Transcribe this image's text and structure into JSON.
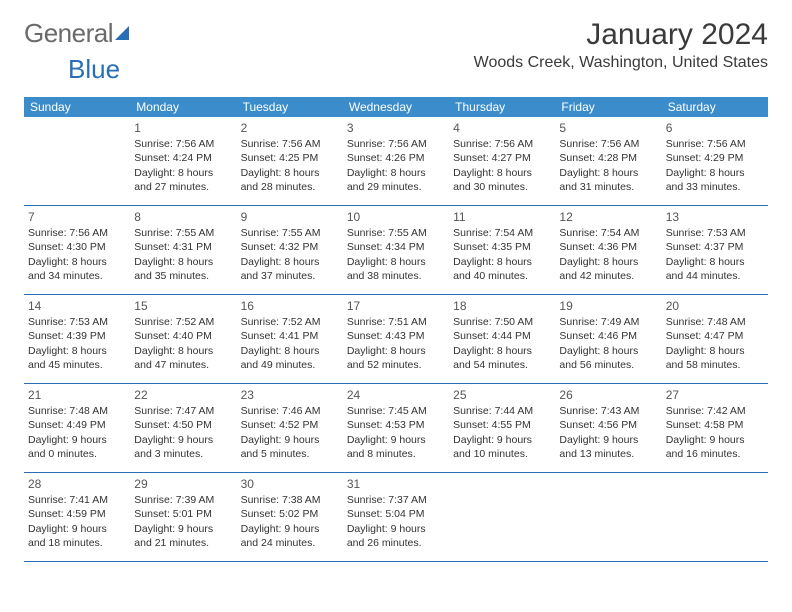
{
  "logo": {
    "part1": "General",
    "part2": "Blue"
  },
  "header": {
    "month_title": "January 2024",
    "location": "Woods Creek, Washington, United States"
  },
  "day_names": [
    "Sunday",
    "Monday",
    "Tuesday",
    "Wednesday",
    "Thursday",
    "Friday",
    "Saturday"
  ],
  "colors": {
    "header_bg": "#3b8ccb",
    "header_fg": "#ffffff",
    "divider": "#2a6fb5",
    "text": "#333333",
    "daynum": "#555555"
  },
  "start_offset": 1,
  "days": [
    {
      "n": "1",
      "sunrise": "7:56 AM",
      "sunset": "4:24 PM",
      "dl1": "8 hours",
      "dl2": "and 27 minutes."
    },
    {
      "n": "2",
      "sunrise": "7:56 AM",
      "sunset": "4:25 PM",
      "dl1": "8 hours",
      "dl2": "and 28 minutes."
    },
    {
      "n": "3",
      "sunrise": "7:56 AM",
      "sunset": "4:26 PM",
      "dl1": "8 hours",
      "dl2": "and 29 minutes."
    },
    {
      "n": "4",
      "sunrise": "7:56 AM",
      "sunset": "4:27 PM",
      "dl1": "8 hours",
      "dl2": "and 30 minutes."
    },
    {
      "n": "5",
      "sunrise": "7:56 AM",
      "sunset": "4:28 PM",
      "dl1": "8 hours",
      "dl2": "and 31 minutes."
    },
    {
      "n": "6",
      "sunrise": "7:56 AM",
      "sunset": "4:29 PM",
      "dl1": "8 hours",
      "dl2": "and 33 minutes."
    },
    {
      "n": "7",
      "sunrise": "7:56 AM",
      "sunset": "4:30 PM",
      "dl1": "8 hours",
      "dl2": "and 34 minutes."
    },
    {
      "n": "8",
      "sunrise": "7:55 AM",
      "sunset": "4:31 PM",
      "dl1": "8 hours",
      "dl2": "and 35 minutes."
    },
    {
      "n": "9",
      "sunrise": "7:55 AM",
      "sunset": "4:32 PM",
      "dl1": "8 hours",
      "dl2": "and 37 minutes."
    },
    {
      "n": "10",
      "sunrise": "7:55 AM",
      "sunset": "4:34 PM",
      "dl1": "8 hours",
      "dl2": "and 38 minutes."
    },
    {
      "n": "11",
      "sunrise": "7:54 AM",
      "sunset": "4:35 PM",
      "dl1": "8 hours",
      "dl2": "and 40 minutes."
    },
    {
      "n": "12",
      "sunrise": "7:54 AM",
      "sunset": "4:36 PM",
      "dl1": "8 hours",
      "dl2": "and 42 minutes."
    },
    {
      "n": "13",
      "sunrise": "7:53 AM",
      "sunset": "4:37 PM",
      "dl1": "8 hours",
      "dl2": "and 44 minutes."
    },
    {
      "n": "14",
      "sunrise": "7:53 AM",
      "sunset": "4:39 PM",
      "dl1": "8 hours",
      "dl2": "and 45 minutes."
    },
    {
      "n": "15",
      "sunrise": "7:52 AM",
      "sunset": "4:40 PM",
      "dl1": "8 hours",
      "dl2": "and 47 minutes."
    },
    {
      "n": "16",
      "sunrise": "7:52 AM",
      "sunset": "4:41 PM",
      "dl1": "8 hours",
      "dl2": "and 49 minutes."
    },
    {
      "n": "17",
      "sunrise": "7:51 AM",
      "sunset": "4:43 PM",
      "dl1": "8 hours",
      "dl2": "and 52 minutes."
    },
    {
      "n": "18",
      "sunrise": "7:50 AM",
      "sunset": "4:44 PM",
      "dl1": "8 hours",
      "dl2": "and 54 minutes."
    },
    {
      "n": "19",
      "sunrise": "7:49 AM",
      "sunset": "4:46 PM",
      "dl1": "8 hours",
      "dl2": "and 56 minutes."
    },
    {
      "n": "20",
      "sunrise": "7:48 AM",
      "sunset": "4:47 PM",
      "dl1": "8 hours",
      "dl2": "and 58 minutes."
    },
    {
      "n": "21",
      "sunrise": "7:48 AM",
      "sunset": "4:49 PM",
      "dl1": "9 hours",
      "dl2": "and 0 minutes."
    },
    {
      "n": "22",
      "sunrise": "7:47 AM",
      "sunset": "4:50 PM",
      "dl1": "9 hours",
      "dl2": "and 3 minutes."
    },
    {
      "n": "23",
      "sunrise": "7:46 AM",
      "sunset": "4:52 PM",
      "dl1": "9 hours",
      "dl2": "and 5 minutes."
    },
    {
      "n": "24",
      "sunrise": "7:45 AM",
      "sunset": "4:53 PM",
      "dl1": "9 hours",
      "dl2": "and 8 minutes."
    },
    {
      "n": "25",
      "sunrise": "7:44 AM",
      "sunset": "4:55 PM",
      "dl1": "9 hours",
      "dl2": "and 10 minutes."
    },
    {
      "n": "26",
      "sunrise": "7:43 AM",
      "sunset": "4:56 PM",
      "dl1": "9 hours",
      "dl2": "and 13 minutes."
    },
    {
      "n": "27",
      "sunrise": "7:42 AM",
      "sunset": "4:58 PM",
      "dl1": "9 hours",
      "dl2": "and 16 minutes."
    },
    {
      "n": "28",
      "sunrise": "7:41 AM",
      "sunset": "4:59 PM",
      "dl1": "9 hours",
      "dl2": "and 18 minutes."
    },
    {
      "n": "29",
      "sunrise": "7:39 AM",
      "sunset": "5:01 PM",
      "dl1": "9 hours",
      "dl2": "and 21 minutes."
    },
    {
      "n": "30",
      "sunrise": "7:38 AM",
      "sunset": "5:02 PM",
      "dl1": "9 hours",
      "dl2": "and 24 minutes."
    },
    {
      "n": "31",
      "sunrise": "7:37 AM",
      "sunset": "5:04 PM",
      "dl1": "9 hours",
      "dl2": "and 26 minutes."
    }
  ],
  "labels": {
    "sunrise": "Sunrise:",
    "sunset": "Sunset:",
    "daylight": "Daylight:"
  }
}
